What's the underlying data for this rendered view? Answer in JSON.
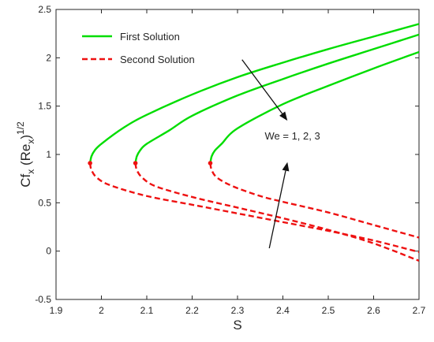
{
  "chart_data": {
    "type": "line",
    "xlabel": "S",
    "ylabel": {
      "base": "Cf",
      "sub1": "x",
      "mid": " (Re",
      "sub2": "x",
      "close": ")",
      "sup": "1/2"
    },
    "xlim": [
      1.9,
      2.7
    ],
    "ylim": [
      -0.5,
      2.5
    ],
    "x_ticks": [
      1.9,
      2.0,
      2.1,
      2.2,
      2.3,
      2.4,
      2.5,
      2.6,
      2.7
    ],
    "x_tick_labels": [
      "1.9",
      "2",
      "2.1",
      "2.2",
      "2.3",
      "2.4",
      "2.5",
      "2.6",
      "2.7"
    ],
    "y_ticks": [
      -0.5,
      0,
      0.5,
      1,
      1.5,
      2,
      2.5
    ],
    "y_tick_labels": [
      "-0.5",
      "0",
      "0.5",
      "1",
      "1.5",
      "2",
      "2.5"
    ],
    "grid": false,
    "legend_position": "top-left",
    "colors": {
      "first": "#00dd00",
      "second": "#ee1111",
      "axis": "#262626",
      "arrow": "#111111"
    },
    "series": [
      {
        "name": "First Solution",
        "style": "solid",
        "color": "#00dd00",
        "curves": [
          [
            [
              1.975,
              0.91
            ],
            [
              1.978,
              0.98
            ],
            [
              1.985,
              1.04
            ],
            [
              2.0,
              1.11
            ],
            [
              2.05,
              1.28
            ],
            [
              2.1,
              1.41
            ],
            [
              2.2,
              1.62
            ],
            [
              2.3,
              1.8
            ],
            [
              2.4,
              1.95
            ],
            [
              2.5,
              2.09
            ],
            [
              2.6,
              2.22
            ],
            [
              2.7,
              2.35
            ]
          ],
          [
            [
              2.075,
              0.91
            ],
            [
              2.078,
              0.98
            ],
            [
              2.085,
              1.04
            ],
            [
              2.1,
              1.11
            ],
            [
              2.15,
              1.25
            ],
            [
              2.2,
              1.4
            ],
            [
              2.3,
              1.61
            ],
            [
              2.4,
              1.78
            ],
            [
              2.5,
              1.94
            ],
            [
              2.6,
              2.09
            ],
            [
              2.7,
              2.24
            ]
          ],
          [
            [
              2.24,
              0.91
            ],
            [
              2.243,
              0.98
            ],
            [
              2.25,
              1.04
            ],
            [
              2.265,
              1.11
            ],
            [
              2.3,
              1.27
            ],
            [
              2.4,
              1.52
            ],
            [
              2.5,
              1.71
            ],
            [
              2.6,
              1.89
            ],
            [
              2.7,
              2.06
            ]
          ]
        ]
      },
      {
        "name": "Second Solution",
        "style": "dashed",
        "color": "#ee1111",
        "curves": [
          [
            [
              1.975,
              0.91
            ],
            [
              1.978,
              0.84
            ],
            [
              1.99,
              0.76
            ],
            [
              2.02,
              0.68
            ],
            [
              2.1,
              0.57
            ],
            [
              2.2,
              0.48
            ],
            [
              2.3,
              0.39
            ],
            [
              2.4,
              0.3
            ],
            [
              2.5,
              0.21
            ],
            [
              2.6,
              0.11
            ],
            [
              2.7,
              -0.01
            ]
          ],
          [
            [
              2.075,
              0.91
            ],
            [
              2.078,
              0.84
            ],
            [
              2.09,
              0.76
            ],
            [
              2.12,
              0.67
            ],
            [
              2.2,
              0.56
            ],
            [
              2.3,
              0.45
            ],
            [
              2.4,
              0.34
            ],
            [
              2.5,
              0.22
            ],
            [
              2.6,
              0.08
            ],
            [
              2.7,
              -0.1
            ]
          ],
          [
            [
              2.24,
              0.91
            ],
            [
              2.243,
              0.84
            ],
            [
              2.255,
              0.76
            ],
            [
              2.29,
              0.67
            ],
            [
              2.35,
              0.57
            ],
            [
              2.4,
              0.51
            ],
            [
              2.5,
              0.4
            ],
            [
              2.6,
              0.27
            ],
            [
              2.7,
              0.14
            ]
          ]
        ]
      }
    ],
    "turning_points": [
      [
        1.975,
        0.91
      ],
      [
        2.075,
        0.91
      ],
      [
        2.24,
        0.91
      ]
    ],
    "annotation": {
      "text": "We = 1, 2, 3",
      "x": 2.44,
      "y": 0.91
    },
    "arrows": [
      {
        "from": [
          2.31,
          1.98
        ],
        "to": [
          2.41,
          1.35
        ]
      },
      {
        "from": [
          2.37,
          0.03
        ],
        "to": [
          2.41,
          0.92
        ]
      }
    ]
  }
}
